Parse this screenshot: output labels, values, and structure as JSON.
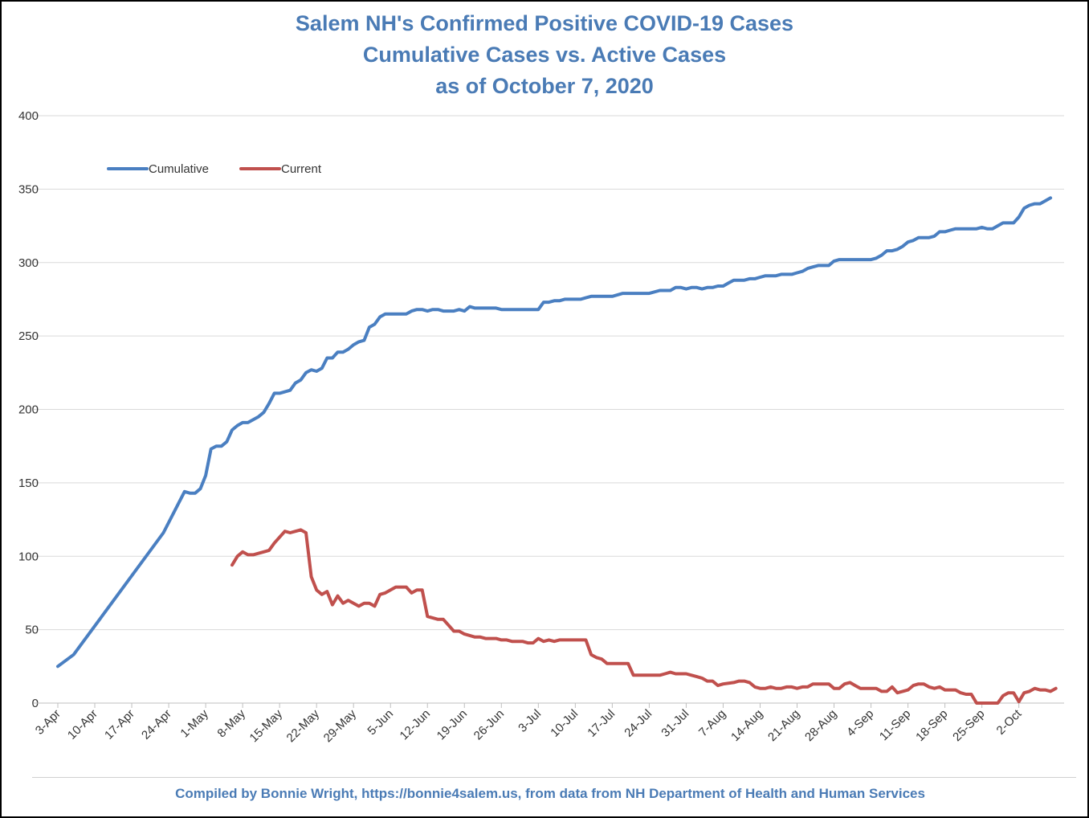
{
  "title": {
    "line1": "Salem NH's Confirmed Positive COVID-19 Cases",
    "line2": "Cumulative Cases vs. Active Cases",
    "line3": "as of October 7, 2020"
  },
  "footer": "Compiled by Bonnie Wright, https://bonnie4salem.us, from data from NH Department of Health and Human Services",
  "chart_data": {
    "type": "line",
    "title": "Salem NH's Confirmed Positive COVID-19 Cases Cumulative Cases vs. Active Cases as of October 7, 2020",
    "xlabel": "",
    "ylabel": "",
    "ylim": [
      0,
      400
    ],
    "yticks": [
      0,
      50,
      100,
      150,
      200,
      250,
      300,
      350,
      400
    ],
    "xlim": [
      "3-Apr",
      "7-Oct"
    ],
    "xticks": [
      "3-Apr",
      "10-Apr",
      "17-Apr",
      "24-Apr",
      "1-May",
      "8-May",
      "15-May",
      "22-May",
      "29-May",
      "5-Jun",
      "12-Jun",
      "19-Jun",
      "26-Jun",
      "3-Jul",
      "10-Jul",
      "17-Jul",
      "24-Jul",
      "31-Jul",
      "7-Aug",
      "14-Aug",
      "21-Aug",
      "28-Aug",
      "4-Sep",
      "11-Sep",
      "18-Sep",
      "25-Sep",
      "2-Oct"
    ],
    "grid": "horizontal",
    "legend_position": "top-left",
    "series": [
      {
        "name": "Cumulative",
        "color": "#4a7fc1",
        "points": [
          [
            "3-Apr",
            25
          ],
          [
            "6-Apr",
            33
          ],
          [
            "23-Apr",
            116
          ],
          [
            "27-Apr",
            144
          ],
          [
            "28-Apr",
            143
          ],
          [
            "29-Apr",
            143
          ],
          [
            "30-Apr",
            146
          ],
          [
            "1-May",
            155
          ],
          [
            "2-May",
            173
          ],
          [
            "3-May",
            175
          ],
          [
            "4-May",
            175
          ],
          [
            "5-May",
            178
          ],
          [
            "6-May",
            186
          ],
          [
            "7-May",
            189
          ],
          [
            "8-May",
            191
          ],
          [
            "9-May",
            191
          ],
          [
            "10-May",
            193
          ],
          [
            "11-May",
            195
          ],
          [
            "12-May",
            198
          ],
          [
            "13-May",
            204
          ],
          [
            "14-May",
            211
          ],
          [
            "15-May",
            211
          ],
          [
            "16-May",
            212
          ],
          [
            "17-May",
            213
          ],
          [
            "18-May",
            218
          ],
          [
            "19-May",
            220
          ],
          [
            "20-May",
            225
          ],
          [
            "21-May",
            227
          ],
          [
            "22-May",
            226
          ],
          [
            "23-May",
            228
          ],
          [
            "24-May",
            235
          ],
          [
            "25-May",
            235
          ],
          [
            "26-May",
            239
          ],
          [
            "27-May",
            239
          ],
          [
            "28-May",
            241
          ],
          [
            "29-May",
            244
          ],
          [
            "30-May",
            246
          ],
          [
            "31-May",
            247
          ],
          [
            "1-Jun",
            256
          ],
          [
            "2-Jun",
            258
          ],
          [
            "3-Jun",
            263
          ],
          [
            "4-Jun",
            265
          ],
          [
            "8-Jun",
            265
          ],
          [
            "9-Jun",
            267
          ],
          [
            "10-Jun",
            268
          ],
          [
            "11-Jun",
            268
          ],
          [
            "12-Jun",
            267
          ],
          [
            "13-Jun",
            268
          ],
          [
            "14-Jun",
            268
          ],
          [
            "15-Jun",
            267
          ],
          [
            "17-Jun",
            267
          ],
          [
            "18-Jun",
            268
          ],
          [
            "19-Jun",
            267
          ],
          [
            "20-Jun",
            270
          ],
          [
            "21-Jun",
            269
          ],
          [
            "25-Jun",
            269
          ],
          [
            "26-Jun",
            268
          ],
          [
            "3-Jul",
            268
          ],
          [
            "4-Jul",
            273
          ],
          [
            "5-Jul",
            273
          ],
          [
            "6-Jul",
            274
          ],
          [
            "7-Jul",
            274
          ],
          [
            "8-Jul",
            275
          ],
          [
            "11-Jul",
            275
          ],
          [
            "12-Jul",
            276
          ],
          [
            "13-Jul",
            277
          ],
          [
            "17-Jul",
            277
          ],
          [
            "19-Jul",
            279
          ],
          [
            "24-Jul",
            279
          ],
          [
            "26-Jul",
            281
          ],
          [
            "28-Jul",
            281
          ],
          [
            "29-Jul",
            283
          ],
          [
            "30-Jul",
            283
          ],
          [
            "31-Jul",
            282
          ],
          [
            "1-Aug",
            283
          ],
          [
            "2-Aug",
            283
          ],
          [
            "3-Aug",
            282
          ],
          [
            "4-Aug",
            283
          ],
          [
            "5-Aug",
            283
          ],
          [
            "6-Aug",
            284
          ],
          [
            "7-Aug",
            284
          ],
          [
            "8-Aug",
            286
          ],
          [
            "9-Aug",
            288
          ],
          [
            "11-Aug",
            288
          ],
          [
            "12-Aug",
            289
          ],
          [
            "13-Aug",
            289
          ],
          [
            "14-Aug",
            290
          ],
          [
            "15-Aug",
            291
          ],
          [
            "17-Aug",
            291
          ],
          [
            "18-Aug",
            292
          ],
          [
            "20-Aug",
            292
          ],
          [
            "21-Aug",
            293
          ],
          [
            "22-Aug",
            294
          ],
          [
            "23-Aug",
            296
          ],
          [
            "24-Aug",
            297
          ],
          [
            "25-Aug",
            298
          ],
          [
            "27-Aug",
            298
          ],
          [
            "28-Aug",
            301
          ],
          [
            "29-Aug",
            302
          ],
          [
            "4-Sep",
            302
          ],
          [
            "5-Sep",
            303
          ],
          [
            "6-Sep",
            305
          ],
          [
            "7-Sep",
            308
          ],
          [
            "8-Sep",
            308
          ],
          [
            "9-Sep",
            309
          ],
          [
            "10-Sep",
            311
          ],
          [
            "11-Sep",
            314
          ],
          [
            "12-Sep",
            315
          ],
          [
            "13-Sep",
            317
          ],
          [
            "15-Sep",
            317
          ],
          [
            "16-Sep",
            318
          ],
          [
            "17-Sep",
            321
          ],
          [
            "18-Sep",
            321
          ],
          [
            "19-Sep",
            322
          ],
          [
            "20-Sep",
            323
          ],
          [
            "24-Sep",
            323
          ],
          [
            "25-Sep",
            324
          ],
          [
            "26-Sep",
            323
          ],
          [
            "27-Sep",
            323
          ],
          [
            "29-Sep",
            327
          ],
          [
            "1-Oct",
            327
          ],
          [
            "2-Oct",
            331
          ],
          [
            "3-Oct",
            337
          ],
          [
            "4-Oct",
            339
          ],
          [
            "5-Oct",
            340
          ],
          [
            "6-Oct",
            340
          ],
          [
            "7-Oct",
            342
          ],
          [
            "8-Oct",
            344
          ]
        ]
      },
      {
        "name": "Current",
        "color": "#c0504d",
        "points": [
          [
            "6-May",
            94
          ],
          [
            "7-May",
            100
          ],
          [
            "8-May",
            103
          ],
          [
            "9-May",
            101
          ],
          [
            "10-May",
            101
          ],
          [
            "12-May",
            103
          ],
          [
            "13-May",
            104
          ],
          [
            "14-May",
            109
          ],
          [
            "16-May",
            117
          ],
          [
            "17-May",
            116
          ],
          [
            "18-May",
            117
          ],
          [
            "19-May",
            118
          ],
          [
            "20-May",
            116
          ],
          [
            "21-May",
            86
          ],
          [
            "22-May",
            77
          ],
          [
            "23-May",
            74
          ],
          [
            "24-May",
            76
          ],
          [
            "25-May",
            67
          ],
          [
            "26-May",
            73
          ],
          [
            "27-May",
            68
          ],
          [
            "28-May",
            70
          ],
          [
            "29-May",
            68
          ],
          [
            "30-May",
            66
          ],
          [
            "31-May",
            68
          ],
          [
            "1-Jun",
            68
          ],
          [
            "2-Jun",
            66
          ],
          [
            "3-Jun",
            74
          ],
          [
            "4-Jun",
            75
          ],
          [
            "5-Jun",
            77
          ],
          [
            "6-Jun",
            79
          ],
          [
            "8-Jun",
            79
          ],
          [
            "9-Jun",
            75
          ],
          [
            "10-Jun",
            77
          ],
          [
            "11-Jun",
            77
          ],
          [
            "12-Jun",
            59
          ],
          [
            "14-Jun",
            57
          ],
          [
            "15-Jun",
            57
          ],
          [
            "16-Jun",
            53
          ],
          [
            "17-Jun",
            49
          ],
          [
            "18-Jun",
            49
          ],
          [
            "19-Jun",
            47
          ],
          [
            "20-Jun",
            46
          ],
          [
            "21-Jun",
            45
          ],
          [
            "22-Jun",
            45
          ],
          [
            "23-Jun",
            44
          ],
          [
            "25-Jun",
            44
          ],
          [
            "26-Jun",
            43
          ],
          [
            "27-Jun",
            43
          ],
          [
            "28-Jun",
            42
          ],
          [
            "30-Jun",
            42
          ],
          [
            "1-Jul",
            41
          ],
          [
            "2-Jul",
            41
          ],
          [
            "3-Jul",
            44
          ],
          [
            "4-Jul",
            42
          ],
          [
            "5-Jul",
            43
          ],
          [
            "6-Jul",
            42
          ],
          [
            "7-Jul",
            43
          ],
          [
            "12-Jul",
            43
          ],
          [
            "13-Jul",
            33
          ],
          [
            "14-Jul",
            31
          ],
          [
            "15-Jul",
            30
          ],
          [
            "16-Jul",
            27
          ],
          [
            "20-Jul",
            27
          ],
          [
            "21-Jul",
            19
          ],
          [
            "26-Jul",
            19
          ],
          [
            "27-Jul",
            20
          ],
          [
            "28-Jul",
            21
          ],
          [
            "29-Jul",
            20
          ],
          [
            "31-Jul",
            20
          ],
          [
            "1-Aug",
            19
          ],
          [
            "2-Aug",
            18
          ],
          [
            "3-Aug",
            17
          ],
          [
            "4-Aug",
            15
          ],
          [
            "5-Aug",
            15
          ],
          [
            "6-Aug",
            12
          ],
          [
            "7-Aug",
            13
          ],
          [
            "9-Aug",
            14
          ],
          [
            "10-Aug",
            15
          ],
          [
            "11-Aug",
            15
          ],
          [
            "12-Aug",
            14
          ],
          [
            "13-Aug",
            11
          ],
          [
            "14-Aug",
            10
          ],
          [
            "15-Aug",
            10
          ],
          [
            "16-Aug",
            11
          ],
          [
            "17-Aug",
            10
          ],
          [
            "18-Aug",
            10
          ],
          [
            "19-Aug",
            11
          ],
          [
            "20-Aug",
            11
          ],
          [
            "21-Aug",
            10
          ],
          [
            "22-Aug",
            11
          ],
          [
            "23-Aug",
            11
          ],
          [
            "24-Aug",
            13
          ],
          [
            "27-Aug",
            13
          ],
          [
            "28-Aug",
            10
          ],
          [
            "29-Aug",
            10
          ],
          [
            "30-Aug",
            13
          ],
          [
            "31-Aug",
            14
          ],
          [
            "1-Sep",
            12
          ],
          [
            "2-Sep",
            10
          ],
          [
            "5-Sep",
            10
          ],
          [
            "6-Sep",
            8
          ],
          [
            "7-Sep",
            8
          ],
          [
            "8-Sep",
            11
          ],
          [
            "9-Sep",
            7
          ],
          [
            "10-Sep",
            8
          ],
          [
            "11-Sep",
            9
          ],
          [
            "12-Sep",
            12
          ],
          [
            "13-Sep",
            13
          ],
          [
            "14-Sep",
            13
          ],
          [
            "15-Sep",
            11
          ],
          [
            "16-Sep",
            10
          ],
          [
            "17-Sep",
            11
          ],
          [
            "18-Sep",
            9
          ],
          [
            "20-Sep",
            9
          ],
          [
            "21-Sep",
            7
          ],
          [
            "22-Sep",
            6
          ],
          [
            "23-Sep",
            6
          ],
          [
            "24-Sep",
            0
          ],
          [
            "28-Sep",
            0
          ],
          [
            "29-Sep",
            5
          ],
          [
            "30-Sep",
            7
          ],
          [
            "1-Oct",
            7
          ],
          [
            "2-Oct",
            1
          ],
          [
            "3-Oct",
            7
          ],
          [
            "4-Oct",
            8
          ],
          [
            "5-Oct",
            10
          ],
          [
            "6-Oct",
            9
          ],
          [
            "7-Oct",
            9
          ],
          [
            "8-Oct",
            8
          ],
          [
            "9-Oct",
            10
          ]
        ]
      }
    ]
  }
}
